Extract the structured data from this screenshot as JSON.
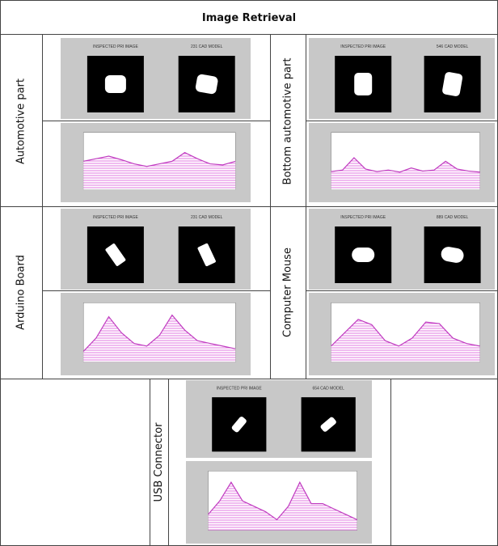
{
  "title": "Image Retrieval",
  "items": [
    {
      "label": "Automotive part",
      "query_label": "INSPECTED PRI IMAGE",
      "model_label": "231 CAD MODEL"
    },
    {
      "label": "Bottom  automotive part",
      "query_label": "INSPECTED PRI IMAGE",
      "model_label": "546 CAD MODEL"
    },
    {
      "label": "Arduino Board",
      "query_label": "INSPECTED PRI IMAGE",
      "model_label": "231 CAD MODEL"
    },
    {
      "label": "Computer Mouse",
      "query_label": "INSPECTED PRI IMAGE",
      "model_label": "889 CAD MODEL"
    },
    {
      "label": "USB Connector",
      "query_label": "INSPECTED PRI IMAGE",
      "model_label": "654 CAD MODEL"
    }
  ]
}
